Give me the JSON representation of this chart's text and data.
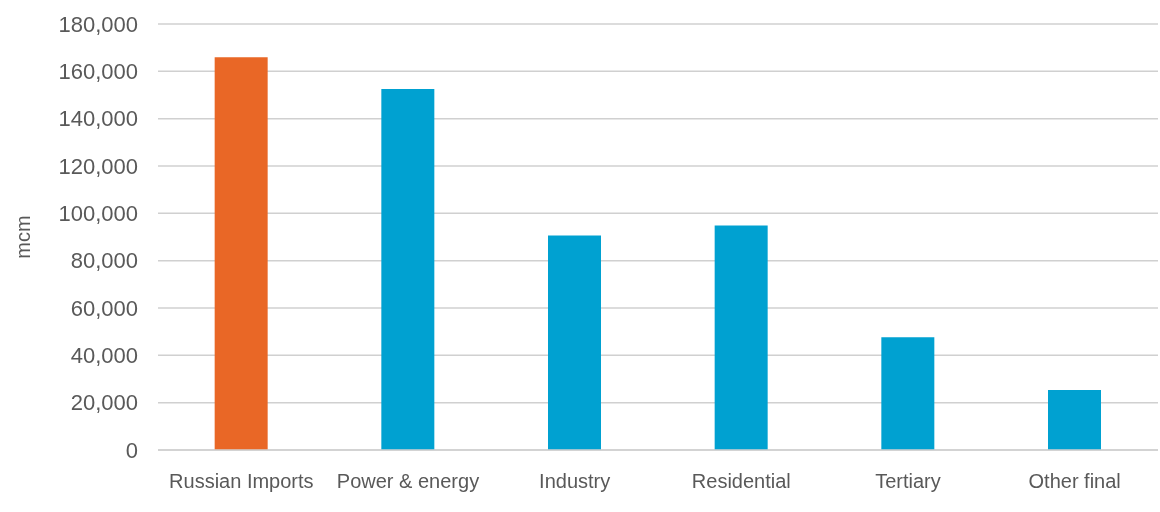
{
  "chart_data": {
    "type": "bar",
    "ylabel": "mcm",
    "categories": [
      "Russian Imports",
      "Power & energy",
      "Industry",
      "Residential",
      "Tertiary",
      "Other final"
    ],
    "values": [
      166000,
      152500,
      90600,
      94900,
      47600,
      25300
    ],
    "colors": [
      "#e96726",
      "#00a1d1",
      "#00a1d1",
      "#00a1d1",
      "#00a1d1",
      "#00a1d1"
    ],
    "ylim": [
      0,
      180000
    ],
    "yticks": [
      0,
      {
        "value": 20000,
        "label": "20,000"
      },
      {
        "value": 40000,
        "label": "40,000"
      },
      {
        "value": 60000,
        "label": "60,000"
      },
      {
        "value": 80000,
        "label": "80,000"
      },
      {
        "value": 100000,
        "label": "100,000"
      },
      {
        "value": 120000,
        "label": "120,000"
      },
      {
        "value": 140000,
        "label": "140,000"
      },
      {
        "value": 160000,
        "label": "160,000"
      },
      {
        "value": 180000,
        "label": "180,000"
      }
    ],
    "grid": "y"
  }
}
